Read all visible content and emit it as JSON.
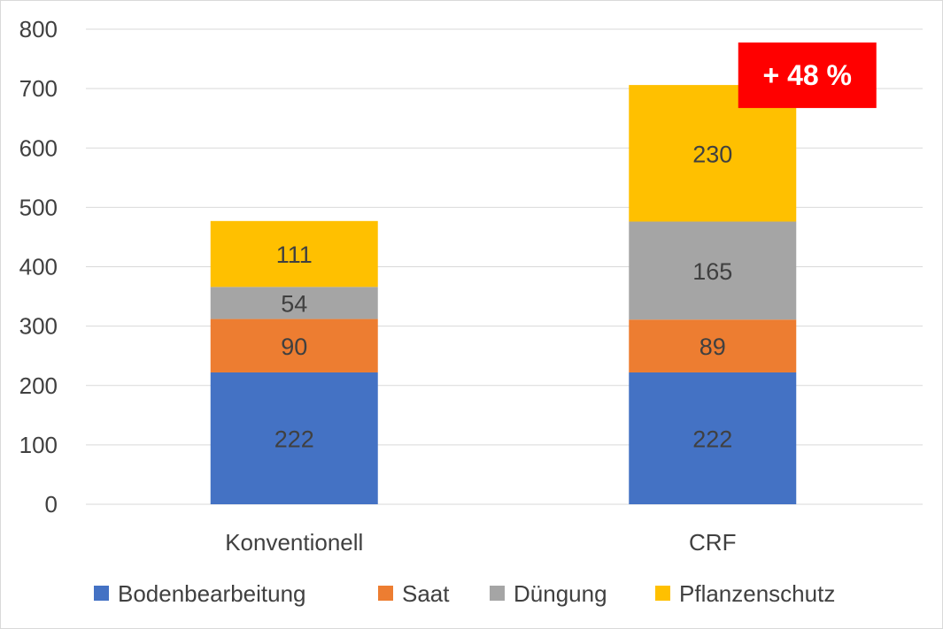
{
  "chart_data": {
    "type": "bar",
    "stacked": true,
    "categories": [
      "Konventionell",
      "CRF"
    ],
    "series": [
      {
        "name": "Bodenbearbeitung",
        "color": "#4472c4",
        "values": [
          222,
          222
        ]
      },
      {
        "name": "Saat",
        "color": "#ed7d31",
        "values": [
          90,
          89
        ]
      },
      {
        "name": "Düngung",
        "color": "#a5a5a5",
        "values": [
          54,
          165
        ]
      },
      {
        "name": "Pflanzenschutz",
        "color": "#ffc000",
        "values": [
          111,
          230
        ]
      }
    ],
    "yticks": [
      "0",
      "100",
      "200",
      "300",
      "400",
      "500",
      "600",
      "700",
      "800"
    ],
    "ylim": [
      0,
      800
    ],
    "grid": true,
    "legend": "bottom",
    "annotation": {
      "text": "+ 48 %",
      "color": "#ff0000",
      "target": "CRF"
    }
  }
}
